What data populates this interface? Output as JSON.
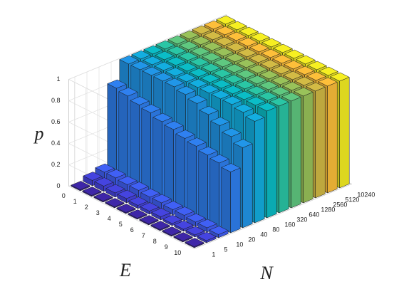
{
  "chart_data": {
    "type": "bar3",
    "xlabel": "N",
    "ylabel": "E",
    "zlabel": "p",
    "x_categories": [
      "1",
      "5",
      "10",
      "20",
      "40",
      "80",
      "160",
      "320",
      "640",
      "1280",
      "2560",
      "5120",
      "10240"
    ],
    "y_categories": [
      "0",
      "1",
      "2",
      "3",
      "4",
      "5",
      "6",
      "7",
      "8",
      "9",
      "10"
    ],
    "colors": [
      "#3e26a8",
      "#4544e0",
      "#4060f5",
      "#2f80f0",
      "#2196e8",
      "#13aee0",
      "#0bbdc6",
      "#2ac6a5",
      "#5fc880",
      "#99c25a",
      "#d3bb45",
      "#fdbf3a",
      "#f6ef22"
    ],
    "values": [
      [
        0.01,
        0.05,
        0.08,
        0.82,
        1,
        1,
        1,
        1,
        1,
        1,
        1,
        1,
        1
      ],
      [
        0.01,
        0.05,
        0.08,
        0.8,
        1,
        1,
        1,
        1,
        1,
        1,
        1,
        1,
        1
      ],
      [
        0.01,
        0.04,
        0.07,
        0.77,
        1,
        1,
        1,
        1,
        1,
        1,
        1,
        1,
        1
      ],
      [
        0.01,
        0.04,
        0.07,
        0.75,
        1,
        1,
        1,
        1,
        1,
        1,
        1,
        1,
        1
      ],
      [
        0.01,
        0.03,
        0.06,
        0.72,
        1,
        1,
        1,
        1,
        1,
        1,
        1,
        1,
        1
      ],
      [
        0.01,
        0.03,
        0.06,
        0.7,
        0.98,
        1,
        1,
        1,
        1,
        1,
        1,
        1,
        1
      ],
      [
        0.01,
        0.03,
        0.05,
        0.67,
        0.95,
        1,
        1,
        1,
        1,
        1,
        1,
        1,
        1
      ],
      [
        0.01,
        0.02,
        0.05,
        0.65,
        0.9,
        1,
        1,
        1,
        1,
        1,
        1,
        1,
        1
      ],
      [
        0.01,
        0.02,
        0.04,
        0.62,
        0.85,
        1,
        1,
        1,
        1,
        1,
        1,
        1,
        1
      ],
      [
        0.01,
        0.02,
        0.04,
        0.6,
        0.8,
        0.98,
        1,
        1,
        1,
        1,
        1,
        1,
        1
      ],
      [
        0.01,
        0.02,
        0.03,
        0.57,
        0.75,
        0.95,
        1,
        1,
        1,
        1,
        1,
        1,
        1
      ]
    ],
    "zlim": [
      0,
      1
    ],
    "zticks": [
      0,
      0.2,
      0.4,
      0.6,
      0.8,
      1
    ],
    "grid": true
  }
}
